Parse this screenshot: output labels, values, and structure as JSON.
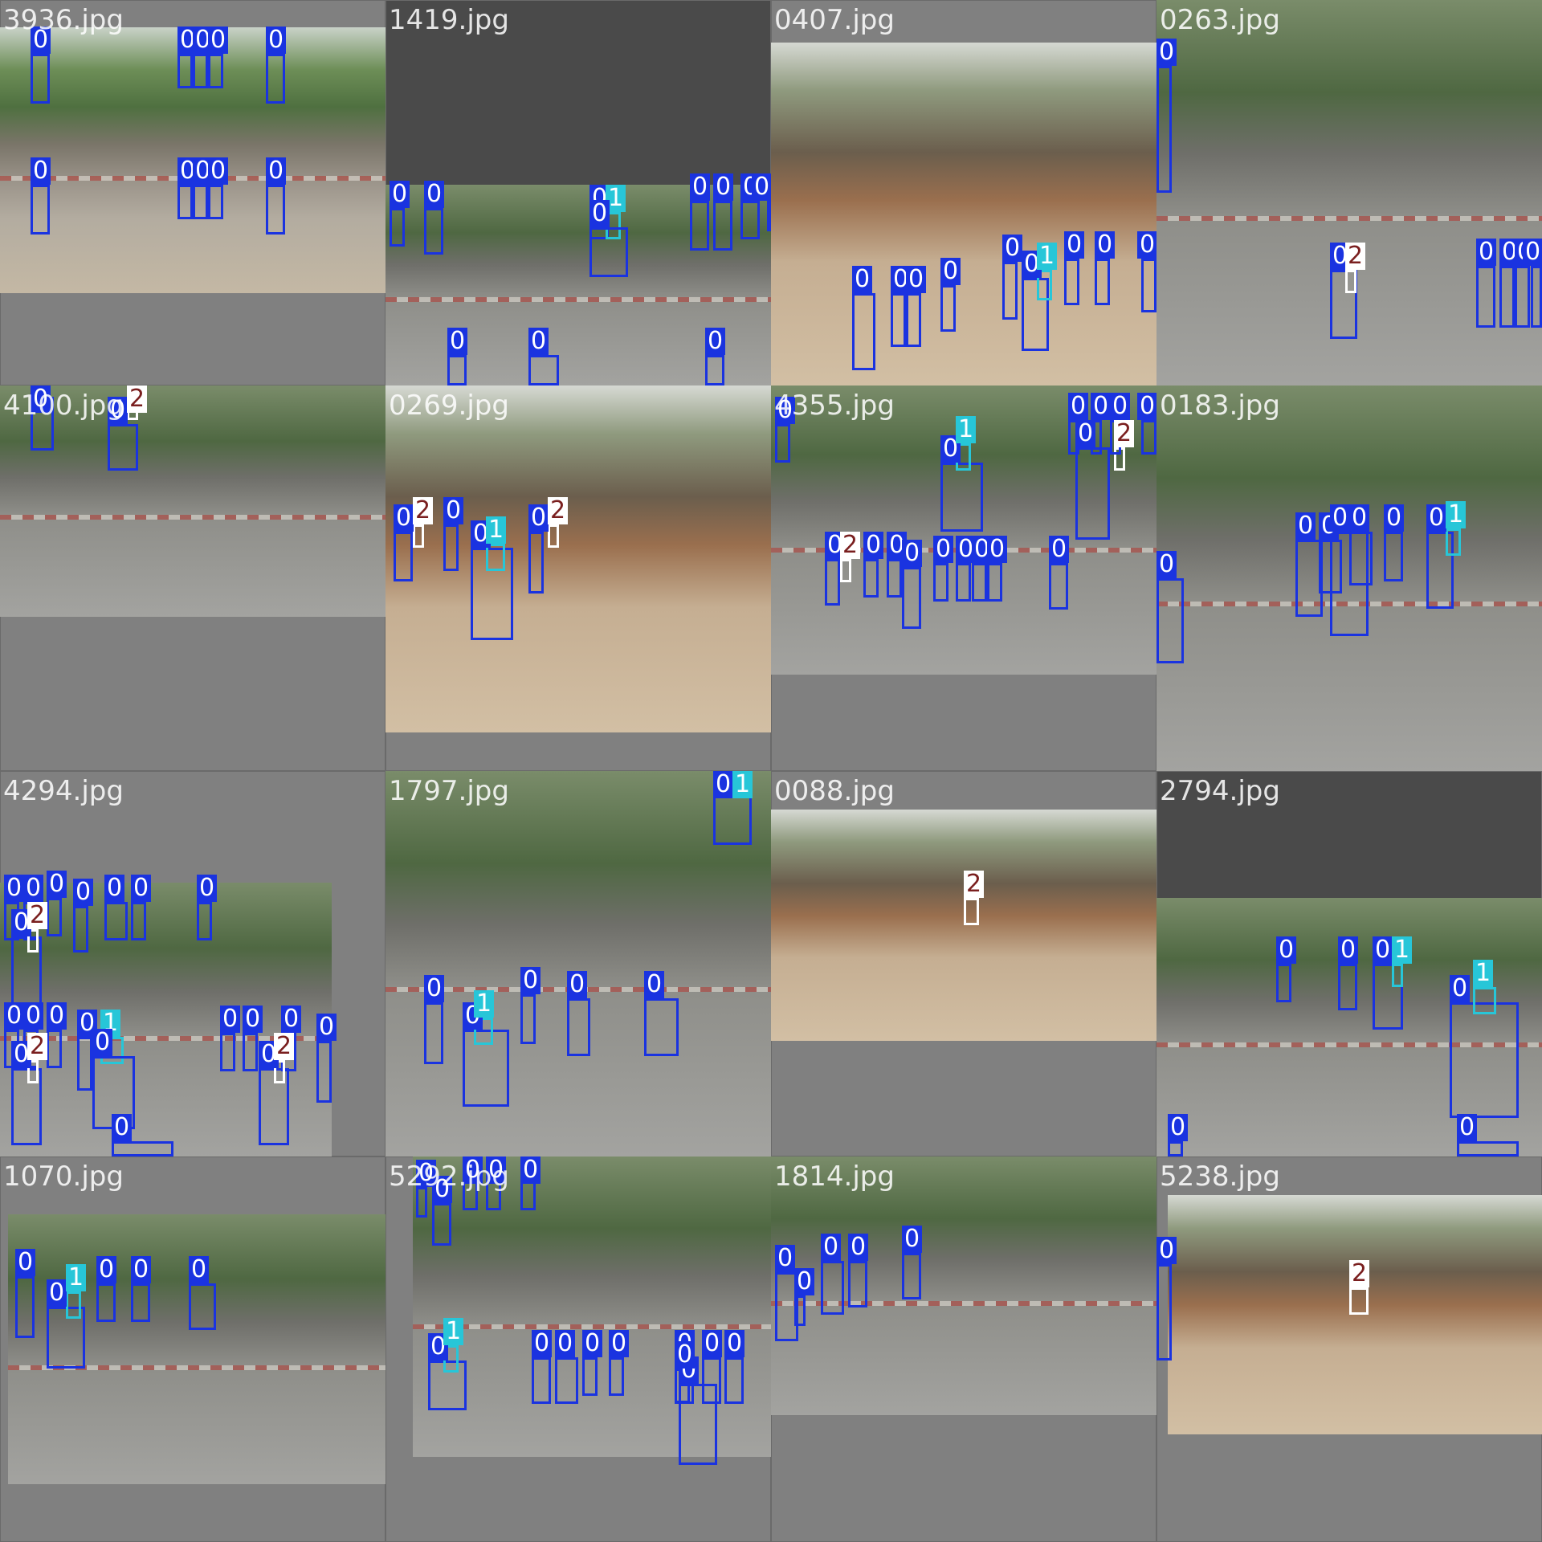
{
  "colors": {
    "class_0": "#1a33e0",
    "class_1": "#27c6d8",
    "class_2": "#ffffff",
    "class_2_text": "#7a1f1f",
    "tile_bg": "#808080",
    "tile_bg_dark": "#4a4a4a"
  },
  "tiles": [
    {
      "name": "3936.jpg",
      "dark": false,
      "scene": "",
      "photos": [
        [
          0,
          0.07,
          1,
          0.69
        ]
      ],
      "dets": [
        [
          "0",
          0.08,
          0.14,
          0.05,
          0.13
        ],
        [
          "0",
          0.46,
          0.14,
          0.04,
          0.09
        ],
        [
          "0",
          0.5,
          0.14,
          0.04,
          0.09
        ],
        [
          "0",
          0.54,
          0.14,
          0.04,
          0.09
        ],
        [
          "0",
          0.69,
          0.14,
          0.05,
          0.13
        ],
        [
          "0",
          0.08,
          0.48,
          0.05,
          0.13
        ],
        [
          "0",
          0.46,
          0.48,
          0.04,
          0.09
        ],
        [
          "0",
          0.5,
          0.48,
          0.04,
          0.09
        ],
        [
          "0",
          0.54,
          0.48,
          0.04,
          0.09
        ],
        [
          "0",
          0.69,
          0.48,
          0.05,
          0.13
        ]
      ]
    },
    {
      "name": "1419.jpg",
      "dark": true,
      "scene": "road",
      "photos": [
        [
          0,
          0.48,
          1,
          0.52
        ]
      ],
      "dets": [
        [
          "0",
          0.01,
          0.54,
          0.04,
          0.1
        ],
        [
          "0",
          0.1,
          0.54,
          0.05,
          0.12
        ],
        [
          "0",
          0.53,
          0.55,
          0.05,
          0.07
        ],
        [
          "1",
          0.57,
          0.55,
          0.04,
          0.07
        ],
        [
          "0",
          0.53,
          0.59,
          0.1,
          0.13
        ],
        [
          "0",
          0.79,
          0.52,
          0.05,
          0.13
        ],
        [
          "0",
          0.85,
          0.52,
          0.05,
          0.13
        ],
        [
          "0",
          0.92,
          0.52,
          0.05,
          0.1
        ],
        [
          "0",
          0.99,
          0.52,
          0.03,
          0.08
        ],
        [
          "0",
          0.16,
          0.92,
          0.05,
          0.08
        ],
        [
          "0",
          0.37,
          0.92,
          0.08,
          0.08
        ],
        [
          "0",
          0.83,
          0.92,
          0.05,
          0.08
        ]
      ]
    },
    {
      "name": "0407.jpg",
      "dark": false,
      "scene": "market",
      "photos": [
        [
          0,
          0.11,
          1,
          0.89
        ]
      ],
      "dets": [
        [
          "0",
          0.21,
          0.76,
          0.06,
          0.2
        ],
        [
          "0",
          0.31,
          0.76,
          0.04,
          0.14
        ],
        [
          "0",
          0.35,
          0.76,
          0.04,
          0.14
        ],
        [
          "0",
          0.44,
          0.74,
          0.04,
          0.12
        ],
        [
          "0",
          0.6,
          0.68,
          0.04,
          0.15
        ],
        [
          "0",
          0.65,
          0.72,
          0.07,
          0.19
        ],
        [
          "1",
          0.69,
          0.7,
          0.04,
          0.08
        ],
        [
          "0",
          0.76,
          0.67,
          0.04,
          0.12
        ],
        [
          "0",
          0.84,
          0.67,
          0.04,
          0.12
        ],
        [
          "0",
          0.96,
          0.67,
          0.04,
          0.14
        ]
      ]
    },
    {
      "name": "0263.jpg",
      "dark": false,
      "scene": "road",
      "photos": [
        [
          0,
          0,
          1,
          1
        ]
      ],
      "dets": [
        [
          "0",
          0,
          0.17,
          0.04,
          0.33
        ],
        [
          "0",
          0.45,
          0.7,
          0.07,
          0.18
        ],
        [
          "2",
          0.49,
          0.7,
          0.03,
          0.06
        ],
        [
          "0",
          0.83,
          0.69,
          0.05,
          0.16
        ],
        [
          "0",
          0.89,
          0.69,
          0.04,
          0.16
        ],
        [
          "0",
          0.93,
          0.69,
          0.04,
          0.16
        ],
        [
          "0",
          0.97,
          0.69,
          0.03,
          0.16
        ]
      ]
    },
    {
      "name": "4100.jpg",
      "dark": false,
      "scene": "road",
      "photos": [
        [
          0,
          0,
          1,
          0.6
        ]
      ],
      "dets": [
        [
          "0",
          0.08,
          0.03,
          0.06,
          0.14
        ],
        [
          "0",
          0.28,
          0.1,
          0.08,
          0.12
        ],
        [
          "2",
          0.33,
          0.04,
          0.03,
          0.05
        ]
      ]
    },
    {
      "name": "0269.jpg",
      "dark": false,
      "scene": "market",
      "photos": [
        [
          0,
          0,
          1,
          0.9
        ]
      ],
      "dets": [
        [
          "0",
          0.02,
          0.38,
          0.05,
          0.13
        ],
        [
          "2",
          0.07,
          0.36,
          0.03,
          0.06
        ],
        [
          "0",
          0.15,
          0.36,
          0.04,
          0.12
        ],
        [
          "0",
          0.22,
          0.42,
          0.11,
          0.24
        ],
        [
          "1",
          0.26,
          0.41,
          0.05,
          0.07
        ],
        [
          "0",
          0.37,
          0.38,
          0.04,
          0.16
        ],
        [
          "2",
          0.42,
          0.36,
          0.03,
          0.06
        ]
      ]
    },
    {
      "name": "4355.jpg",
      "dark": false,
      "scene": "road",
      "photos": [
        [
          0,
          0,
          1,
          0.75
        ]
      ],
      "dets": [
        [
          "0",
          0.01,
          0.1,
          0.04,
          0.1
        ],
        [
          "0",
          0.44,
          0.2,
          0.11,
          0.18
        ],
        [
          "1",
          0.48,
          0.15,
          0.04,
          0.07
        ],
        [
          "0",
          0.79,
          0.16,
          0.09,
          0.24
        ],
        [
          "2",
          0.89,
          0.16,
          0.03,
          0.06
        ],
        [
          "0",
          0.77,
          0.09,
          0.03,
          0.09
        ],
        [
          "0",
          0.83,
          0.09,
          0.03,
          0.09
        ],
        [
          "0",
          0.88,
          0.09,
          0.03,
          0.09
        ],
        [
          "0",
          0.96,
          0.09,
          0.04,
          0.09
        ],
        [
          "0",
          0.14,
          0.45,
          0.04,
          0.12
        ],
        [
          "2",
          0.18,
          0.45,
          0.03,
          0.06
        ],
        [
          "0",
          0.24,
          0.45,
          0.04,
          0.1
        ],
        [
          "0",
          0.3,
          0.45,
          0.04,
          0.1
        ],
        [
          "0",
          0.34,
          0.47,
          0.05,
          0.16
        ],
        [
          "0",
          0.42,
          0.46,
          0.04,
          0.1
        ],
        [
          "0",
          0.48,
          0.46,
          0.04,
          0.1
        ],
        [
          "0",
          0.52,
          0.46,
          0.04,
          0.1
        ],
        [
          "0",
          0.56,
          0.46,
          0.04,
          0.1
        ],
        [
          "0",
          0.72,
          0.46,
          0.05,
          0.12
        ]
      ]
    },
    {
      "name": "0183.jpg",
      "dark": false,
      "scene": "road",
      "photos": [
        [
          0,
          0,
          1,
          1
        ]
      ],
      "dets": [
        [
          "0",
          0,
          0.5,
          0.07,
          0.22
        ],
        [
          "0",
          0.36,
          0.4,
          0.07,
          0.2
        ],
        [
          "0",
          0.42,
          0.4,
          0.06,
          0.14
        ],
        [
          "0",
          0.45,
          0.38,
          0.1,
          0.27
        ],
        [
          "0",
          0.5,
          0.38,
          0.06,
          0.14
        ],
        [
          "0",
          0.59,
          0.38,
          0.05,
          0.13
        ],
        [
          "0",
          0.7,
          0.38,
          0.07,
          0.2
        ],
        [
          "1",
          0.75,
          0.37,
          0.04,
          0.07
        ]
      ]
    },
    {
      "name": "4294.jpg",
      "dark": false,
      "scene": "road",
      "photos": [
        [
          0,
          0.29,
          0.86,
          0.71
        ]
      ],
      "dets": [
        [
          "0",
          0.01,
          0.34,
          0.04,
          0.1
        ],
        [
          "0",
          0.06,
          0.34,
          0.04,
          0.1
        ],
        [
          "0",
          0.12,
          0.33,
          0.04,
          0.1
        ],
        [
          "0",
          0.03,
          0.43,
          0.08,
          0.2
        ],
        [
          "2",
          0.07,
          0.41,
          0.03,
          0.06
        ],
        [
          "0",
          0.19,
          0.35,
          0.04,
          0.12
        ],
        [
          "0",
          0.27,
          0.34,
          0.06,
          0.1
        ],
        [
          "0",
          0.34,
          0.34,
          0.04,
          0.1
        ],
        [
          "0",
          0.51,
          0.34,
          0.04,
          0.1
        ],
        [
          "0",
          0.01,
          0.67,
          0.04,
          0.1
        ],
        [
          "0",
          0.06,
          0.67,
          0.04,
          0.1
        ],
        [
          "0",
          0.12,
          0.67,
          0.04,
          0.1
        ],
        [
          "0",
          0.03,
          0.77,
          0.08,
          0.2
        ],
        [
          "2",
          0.07,
          0.75,
          0.03,
          0.06
        ],
        [
          "0",
          0.2,
          0.69,
          0.04,
          0.14
        ],
        [
          "1",
          0.26,
          0.69,
          0.06,
          0.07
        ],
        [
          "0",
          0.24,
          0.74,
          0.11,
          0.19
        ],
        [
          "0",
          0.57,
          0.68,
          0.04,
          0.1
        ],
        [
          "0",
          0.63,
          0.68,
          0.04,
          0.1
        ],
        [
          "0",
          0.73,
          0.68,
          0.04,
          0.1
        ],
        [
          "0",
          0.67,
          0.77,
          0.08,
          0.2
        ],
        [
          "2",
          0.71,
          0.75,
          0.03,
          0.06
        ],
        [
          "0",
          0.82,
          0.7,
          0.04,
          0.16
        ],
        [
          "0",
          0.29,
          0.96,
          0.16,
          0.08
        ]
      ]
    },
    {
      "name": "1797.jpg",
      "dark": false,
      "scene": "road",
      "photos": [
        [
          0,
          0,
          1,
          1
        ]
      ],
      "dets": [
        [
          "0",
          0.85,
          0.02,
          0.1,
          0.17
        ],
        [
          "1",
          0.9,
          0.0,
          0.03,
          0.06
        ],
        [
          "0",
          0.1,
          0.6,
          0.05,
          0.16
        ],
        [
          "0",
          0.2,
          0.67,
          0.12,
          0.2
        ],
        [
          "1",
          0.23,
          0.64,
          0.05,
          0.07
        ],
        [
          "0",
          0.35,
          0.58,
          0.04,
          0.13
        ],
        [
          "0",
          0.47,
          0.59,
          0.06,
          0.15
        ],
        [
          "0",
          0.67,
          0.59,
          0.09,
          0.15
        ]
      ]
    },
    {
      "name": "0088.jpg",
      "dark": false,
      "scene": "market",
      "photos": [
        [
          0,
          0.1,
          1,
          0.6
        ]
      ],
      "dets": [
        [
          "2",
          0.5,
          0.33,
          0.04,
          0.07
        ]
      ]
    },
    {
      "name": "2794.jpg",
      "dark": true,
      "scene": "road",
      "photos": [
        [
          0,
          0.33,
          1,
          0.67
        ]
      ],
      "dets": [
        [
          "0",
          0.31,
          0.5,
          0.04,
          0.1
        ],
        [
          "0",
          0.47,
          0.5,
          0.05,
          0.12
        ],
        [
          "0",
          0.56,
          0.5,
          0.08,
          0.17
        ],
        [
          "1",
          0.61,
          0.5,
          0.03,
          0.06
        ],
        [
          "0",
          0.76,
          0.6,
          0.18,
          0.3
        ],
        [
          "1",
          0.82,
          0.56,
          0.06,
          0.07
        ],
        [
          "0",
          0.03,
          0.96,
          0.04,
          0.1
        ],
        [
          "0",
          0.78,
          0.96,
          0.16,
          0.1
        ]
      ]
    },
    {
      "name": "1070.jpg",
      "dark": false,
      "scene": "road",
      "photos": [
        [
          0.02,
          0.15,
          0.98,
          0.7
        ]
      ],
      "dets": [
        [
          "0",
          0.04,
          0.31,
          0.05,
          0.16
        ],
        [
          "0",
          0.12,
          0.39,
          0.1,
          0.16
        ],
        [
          "1",
          0.17,
          0.35,
          0.04,
          0.07
        ],
        [
          "0",
          0.25,
          0.33,
          0.05,
          0.1
        ],
        [
          "0",
          0.34,
          0.33,
          0.05,
          0.1
        ],
        [
          "0",
          0.49,
          0.33,
          0.07,
          0.12
        ]
      ]
    },
    {
      "name": "5292.jpg",
      "dark": false,
      "scene": "road",
      "photos": [
        [
          0.07,
          0,
          0.93,
          0.78
        ]
      ],
      "dets": [
        [
          "0",
          0.08,
          0.08,
          0.03,
          0.08
        ],
        [
          "0",
          0.12,
          0.12,
          0.05,
          0.11
        ],
        [
          "0",
          0.2,
          0.06,
          0.04,
          0.08
        ],
        [
          "0",
          0.26,
          0.06,
          0.04,
          0.08
        ],
        [
          "0",
          0.35,
          0.06,
          0.04,
          0.08
        ],
        [
          "0",
          0.11,
          0.53,
          0.1,
          0.13
        ],
        [
          "1",
          0.15,
          0.49,
          0.04,
          0.07
        ],
        [
          "0",
          0.38,
          0.52,
          0.05,
          0.12
        ],
        [
          "0",
          0.44,
          0.52,
          0.06,
          0.12
        ],
        [
          "0",
          0.51,
          0.52,
          0.04,
          0.1
        ],
        [
          "0",
          0.58,
          0.52,
          0.04,
          0.1
        ],
        [
          "0",
          0.75,
          0.52,
          0.05,
          0.12
        ],
        [
          "0",
          0.82,
          0.52,
          0.05,
          0.12
        ],
        [
          "0",
          0.88,
          0.52,
          0.05,
          0.12
        ],
        [
          "0",
          0.76,
          0.59,
          0.1,
          0.21
        ],
        [
          "0",
          0.75,
          0.55,
          0.04,
          0.09
        ]
      ]
    },
    {
      "name": "1814.jpg",
      "dark": false,
      "scene": "road",
      "photos": [
        [
          0,
          0,
          1,
          0.67
        ]
      ],
      "dets": [
        [
          "0",
          0.01,
          0.3,
          0.06,
          0.18
        ],
        [
          "0",
          0.06,
          0.36,
          0.03,
          0.08
        ],
        [
          "0",
          0.13,
          0.27,
          0.06,
          0.14
        ],
        [
          "0",
          0.2,
          0.27,
          0.05,
          0.12
        ],
        [
          "0",
          0.34,
          0.25,
          0.05,
          0.12
        ]
      ]
    },
    {
      "name": "5238.jpg",
      "dark": false,
      "scene": "market",
      "photos": [
        [
          0.03,
          0.1,
          0.97,
          0.62
        ]
      ],
      "dets": [
        [
          "0",
          0,
          0.28,
          0.04,
          0.25
        ],
        [
          "2",
          0.5,
          0.34,
          0.05,
          0.07
        ]
      ]
    }
  ]
}
